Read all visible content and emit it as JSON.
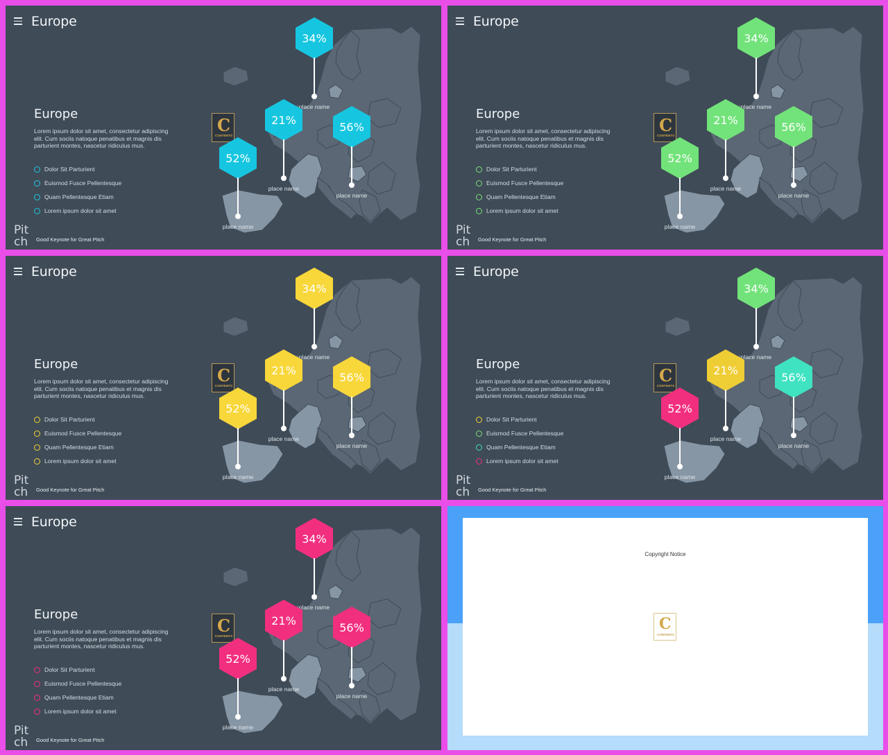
{
  "slides": [
    {
      "menu_icon": "hamburger-icon",
      "title": "Europe",
      "content_title": "Europe",
      "description": "Lorem ipsum dolor sit amet, consectetur adipiscing elit. Cum sociis natoque penatibus et magnis dis parturient montes, nascetur ridiculus mus.",
      "list": [
        "Dolor Sit Parturient",
        "Euismod Fusce Pellentesque",
        "Quam Pellentesque Etiam",
        "Lorem ipsum dolor sit amet"
      ],
      "list_colors": [
        "#1ec8e4",
        "#1ec8e4",
        "#1ec8e4",
        "#1ec8e4"
      ],
      "markers": [
        {
          "value": "34%",
          "place": "place name",
          "color": "#16c6e0"
        },
        {
          "value": "21%",
          "place": "place name",
          "color": "#16c6e0"
        },
        {
          "value": "56%",
          "place": "place name",
          "color": "#16c6e0"
        },
        {
          "value": "52%",
          "place": "place name",
          "color": "#16c6e0"
        }
      ],
      "pitch": "Pitch",
      "footer": "Good Keynote for Great Pitch",
      "logo_text": "C",
      "logo_sub": "CONTENTS"
    },
    {
      "menu_icon": "hamburger-icon",
      "title": "Europe",
      "content_title": "Europe",
      "description": "Lorem ipsum dolor sit amet, consectetur adipiscing elit. Cum sociis natoque penatibus et magnis dis parturient montes, nascetur ridiculus mus.",
      "list": [
        "Dolor Sit Parturient",
        "Euismod Fusce Pellentesque",
        "Quam Pellentesque Etiam",
        "Lorem ipsum dolor sit amet"
      ],
      "list_colors": [
        "#7be27a",
        "#7be27a",
        "#7be27a",
        "#7be27a"
      ],
      "markers": [
        {
          "value": "34%",
          "place": "place name",
          "color": "#72e37a"
        },
        {
          "value": "21%",
          "place": "place name",
          "color": "#72e37a"
        },
        {
          "value": "56%",
          "place": "place name",
          "color": "#72e37a"
        },
        {
          "value": "52%",
          "place": "place name",
          "color": "#72e37a"
        }
      ],
      "pitch": "Pitch",
      "footer": "Good Keynote for Great Pitch",
      "logo_text": "C",
      "logo_sub": "CONTENTS"
    },
    {
      "menu_icon": "hamburger-icon",
      "title": "Europe",
      "content_title": "Europe",
      "description": "Lorem ipsum dolor sit amet, consectetur adipiscing elit. Cum sociis natoque penatibus et magnis dis parturient montes, nascetur ridiculus mus.",
      "list": [
        "Dolor Sit Parturient",
        "Euismod Fusce Pellentesque",
        "Quam Pellentesque Etiam",
        "Lorem ipsum dolor sit amet"
      ],
      "list_colors": [
        "#f4d437",
        "#f4d437",
        "#f4d437",
        "#f4d437"
      ],
      "markers": [
        {
          "value": "34%",
          "place": "place name",
          "color": "#f8d73a"
        },
        {
          "value": "21%",
          "place": "place name",
          "color": "#f8d73a"
        },
        {
          "value": "56%",
          "place": "place name",
          "color": "#f8d73a"
        },
        {
          "value": "52%",
          "place": "place name",
          "color": "#f8d73a"
        }
      ],
      "pitch": "Pitch",
      "footer": "Good Keynote for Great Pitch",
      "logo_text": "C",
      "logo_sub": "CONTENTS"
    },
    {
      "menu_icon": "hamburger-icon",
      "title": "Europe",
      "content_title": "Europe",
      "description": "Lorem ipsum dolor sit amet, consectetur adipiscing elit. Cum sociis natoque penatibus et magnis dis parturient montes, nascetur ridiculus mus.",
      "list": [
        "Dolor Sit Parturient",
        "Euismod Fusce Pellentesque",
        "Quam Pellentesque Etiam",
        "Lorem ipsum dolor sit amet"
      ],
      "list_colors": [
        "#f4d437",
        "#7be27a",
        "#3ee0c0",
        "#f22f7f"
      ],
      "markers": [
        {
          "value": "34%",
          "place": "place name",
          "color": "#72e37a"
        },
        {
          "value": "21%",
          "place": "place name",
          "color": "#efcd35"
        },
        {
          "value": "56%",
          "place": "place name",
          "color": "#3fe2c1"
        },
        {
          "value": "52%",
          "place": "place name",
          "color": "#f22f7f"
        }
      ],
      "pitch": "Pitch",
      "footer": "Good Keynote for Great Pitch",
      "logo_text": "C",
      "logo_sub": "CONTENTS"
    },
    {
      "menu_icon": "hamburger-icon",
      "title": "Europe",
      "content_title": "Europe",
      "description": "Lorem ipsum dolor sit amet, consectetur adipiscing elit. Cum sociis natoque penatibus et magnis dis parturient montes, nascetur ridiculus mus.",
      "list": [
        "Dolor Sit Parturient",
        "Euismod Fusce Pellentesque",
        "Quam Pellentesque Etiam",
        "Lorem ipsum dolor sit amet"
      ],
      "list_colors": [
        "#f22f7f",
        "#f22f7f",
        "#f22f7f",
        "#f22f7f"
      ],
      "markers": [
        {
          "value": "34%",
          "place": "place name",
          "color": "#f22f7f"
        },
        {
          "value": "21%",
          "place": "place name",
          "color": "#f22f7f"
        },
        {
          "value": "56%",
          "place": "place name",
          "color": "#f22f7f"
        },
        {
          "value": "52%",
          "place": "place name",
          "color": "#f22f7f"
        }
      ],
      "pitch": "Pitch",
      "footer": "Good Keynote for Great Pitch",
      "logo_text": "C",
      "logo_sub": "CONTENTS"
    }
  ],
  "copyright_slide": {
    "notice": "Copyright Notice",
    "logo_text": "C",
    "logo_sub": "CONTENTS"
  },
  "colors": {
    "border": "#e94ee8",
    "slide_bg": "#3f4b57",
    "map_land": "#5b6774",
    "map_land_light": "#8796a5"
  }
}
